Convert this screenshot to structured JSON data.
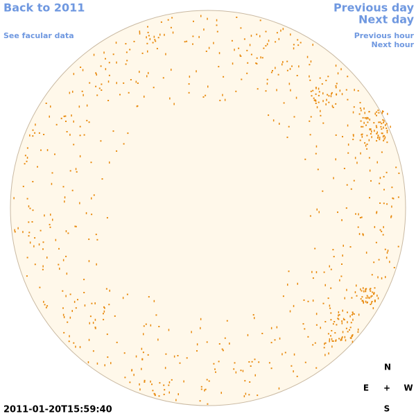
{
  "navigation": {
    "back_to_year": "Back to 2011",
    "see_facular_data": "See facular data",
    "previous_day": "Previous day",
    "next_day": "Next day",
    "previous_hour": "Previous hour",
    "next_hour": "Next hour"
  },
  "timestamp": "2011-01-20T15:59:40",
  "compass": {
    "north": "N",
    "east": "E",
    "center": "+",
    "west": "W",
    "south": "S"
  }
}
